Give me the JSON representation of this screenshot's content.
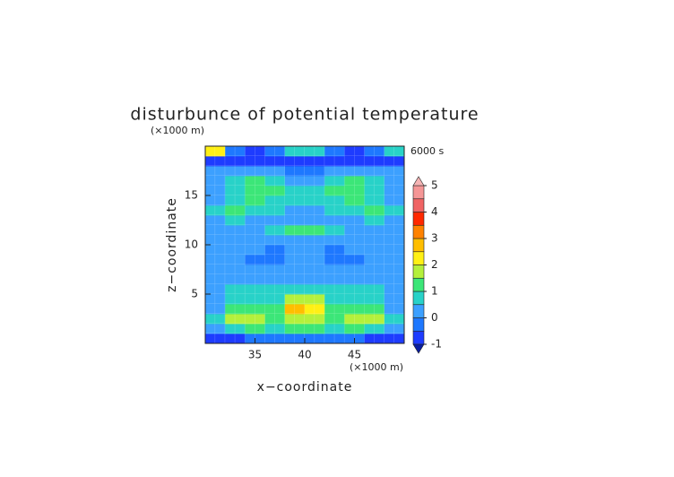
{
  "chart_data": {
    "type": "contour",
    "title": "disturbunce of potential temperature",
    "time_label": "6000 s",
    "x_label": "x−coordinate",
    "x_unit": "(×1000 m)",
    "y_label": "z−coordinate",
    "y_unit": "(×1000 m)",
    "xlim": [
      30,
      50
    ],
    "xticks": [
      35,
      40,
      45
    ],
    "ylim": [
      0,
      20
    ],
    "yticks": [
      5,
      10,
      15
    ],
    "x": [
      31,
      33,
      35,
      37,
      39,
      41,
      43,
      45,
      47,
      49
    ],
    "y": [
      0.5,
      1.5,
      2.5,
      3.5,
      4.5,
      5.5,
      6.5,
      7.5,
      8.5,
      9.5,
      10.5,
      11.5,
      12.5,
      13.5,
      14.5,
      15.5,
      16.5,
      17.5,
      18.5,
      19.5
    ],
    "z": [
      [
        -0.6,
        -0.6,
        -0.4,
        -0.4,
        -0.4,
        -0.4,
        -0.4,
        -0.4,
        -0.6,
        -0.6
      ],
      [
        0.3,
        0.8,
        1.0,
        0.9,
        1.2,
        1.2,
        0.9,
        1.0,
        0.8,
        0.3
      ],
      [
        0.6,
        1.6,
        1.7,
        1.2,
        1.5,
        1.6,
        1.2,
        1.7,
        1.6,
        0.6
      ],
      [
        0.4,
        1.0,
        1.2,
        1.0,
        2.6,
        2.4,
        1.0,
        1.2,
        1.0,
        0.4
      ],
      [
        0.3,
        0.8,
        0.9,
        0.8,
        1.6,
        1.5,
        0.8,
        0.9,
        0.8,
        0.3
      ],
      [
        0.2,
        0.7,
        0.8,
        0.6,
        0.8,
        0.8,
        0.6,
        0.8,
        0.7,
        0.2
      ],
      [
        0.2,
        0.3,
        0.3,
        0.2,
        0.3,
        0.3,
        0.2,
        0.3,
        0.3,
        0.2
      ],
      [
        0.2,
        0.2,
        0.1,
        0.1,
        0.2,
        0.2,
        0.1,
        0.1,
        0.2,
        0.2
      ],
      [
        0.2,
        0.1,
        -0.1,
        -0.1,
        0.1,
        0.1,
        -0.1,
        -0.1,
        0.1,
        0.2
      ],
      [
        0.2,
        0.2,
        0.1,
        -0.1,
        0.2,
        0.2,
        -0.1,
        0.1,
        0.2,
        0.2
      ],
      [
        0.2,
        0.2,
        0.2,
        0.2,
        0.4,
        0.4,
        0.2,
        0.2,
        0.2,
        0.2
      ],
      [
        0.2,
        0.3,
        0.2,
        0.6,
        1.1,
        1.1,
        0.6,
        0.2,
        0.3,
        0.2
      ],
      [
        0.3,
        0.6,
        0.4,
        0.3,
        0.3,
        0.3,
        0.3,
        0.4,
        0.6,
        0.3
      ],
      [
        0.6,
        1.1,
        0.8,
        0.6,
        0.4,
        0.4,
        0.6,
        0.8,
        1.1,
        0.6
      ],
      [
        0.4,
        0.8,
        1.1,
        0.9,
        0.6,
        0.6,
        0.9,
        1.1,
        0.8,
        0.4
      ],
      [
        0.3,
        0.6,
        1.0,
        1.4,
        0.7,
        0.7,
        1.4,
        1.0,
        0.6,
        0.3
      ],
      [
        0.2,
        0.7,
        1.2,
        0.9,
        0.4,
        0.4,
        0.9,
        1.2,
        0.7,
        0.2
      ],
      [
        0.1,
        0.3,
        0.3,
        0.1,
        -0.2,
        -0.2,
        0.1,
        0.3,
        0.3,
        0.1
      ],
      [
        -0.6,
        -0.6,
        -0.7,
        -0.8,
        -0.8,
        -0.8,
        -0.8,
        -0.7,
        -0.6,
        -0.6
      ],
      [
        2.2,
        -0.3,
        -0.6,
        -0.3,
        0.7,
        0.7,
        -0.3,
        -0.6,
        -0.3,
        0.6
      ]
    ],
    "colorbar": {
      "levels": [
        -1,
        -0.5,
        0,
        0.5,
        1,
        1.5,
        2,
        2.5,
        3,
        3.5,
        4,
        4.5,
        5
      ],
      "colors": [
        "#0a1ea0",
        "#1e3cff",
        "#1e78ff",
        "#3ca0ff",
        "#28d2c8",
        "#3ce678",
        "#b4f03c",
        "#fff014",
        "#ffbe00",
        "#ff8200",
        "#ff2800",
        "#f06464",
        "#f59696",
        "#f5b4b4"
      ],
      "ticks": [
        -1,
        0,
        1,
        2,
        3,
        4,
        5
      ]
    }
  }
}
